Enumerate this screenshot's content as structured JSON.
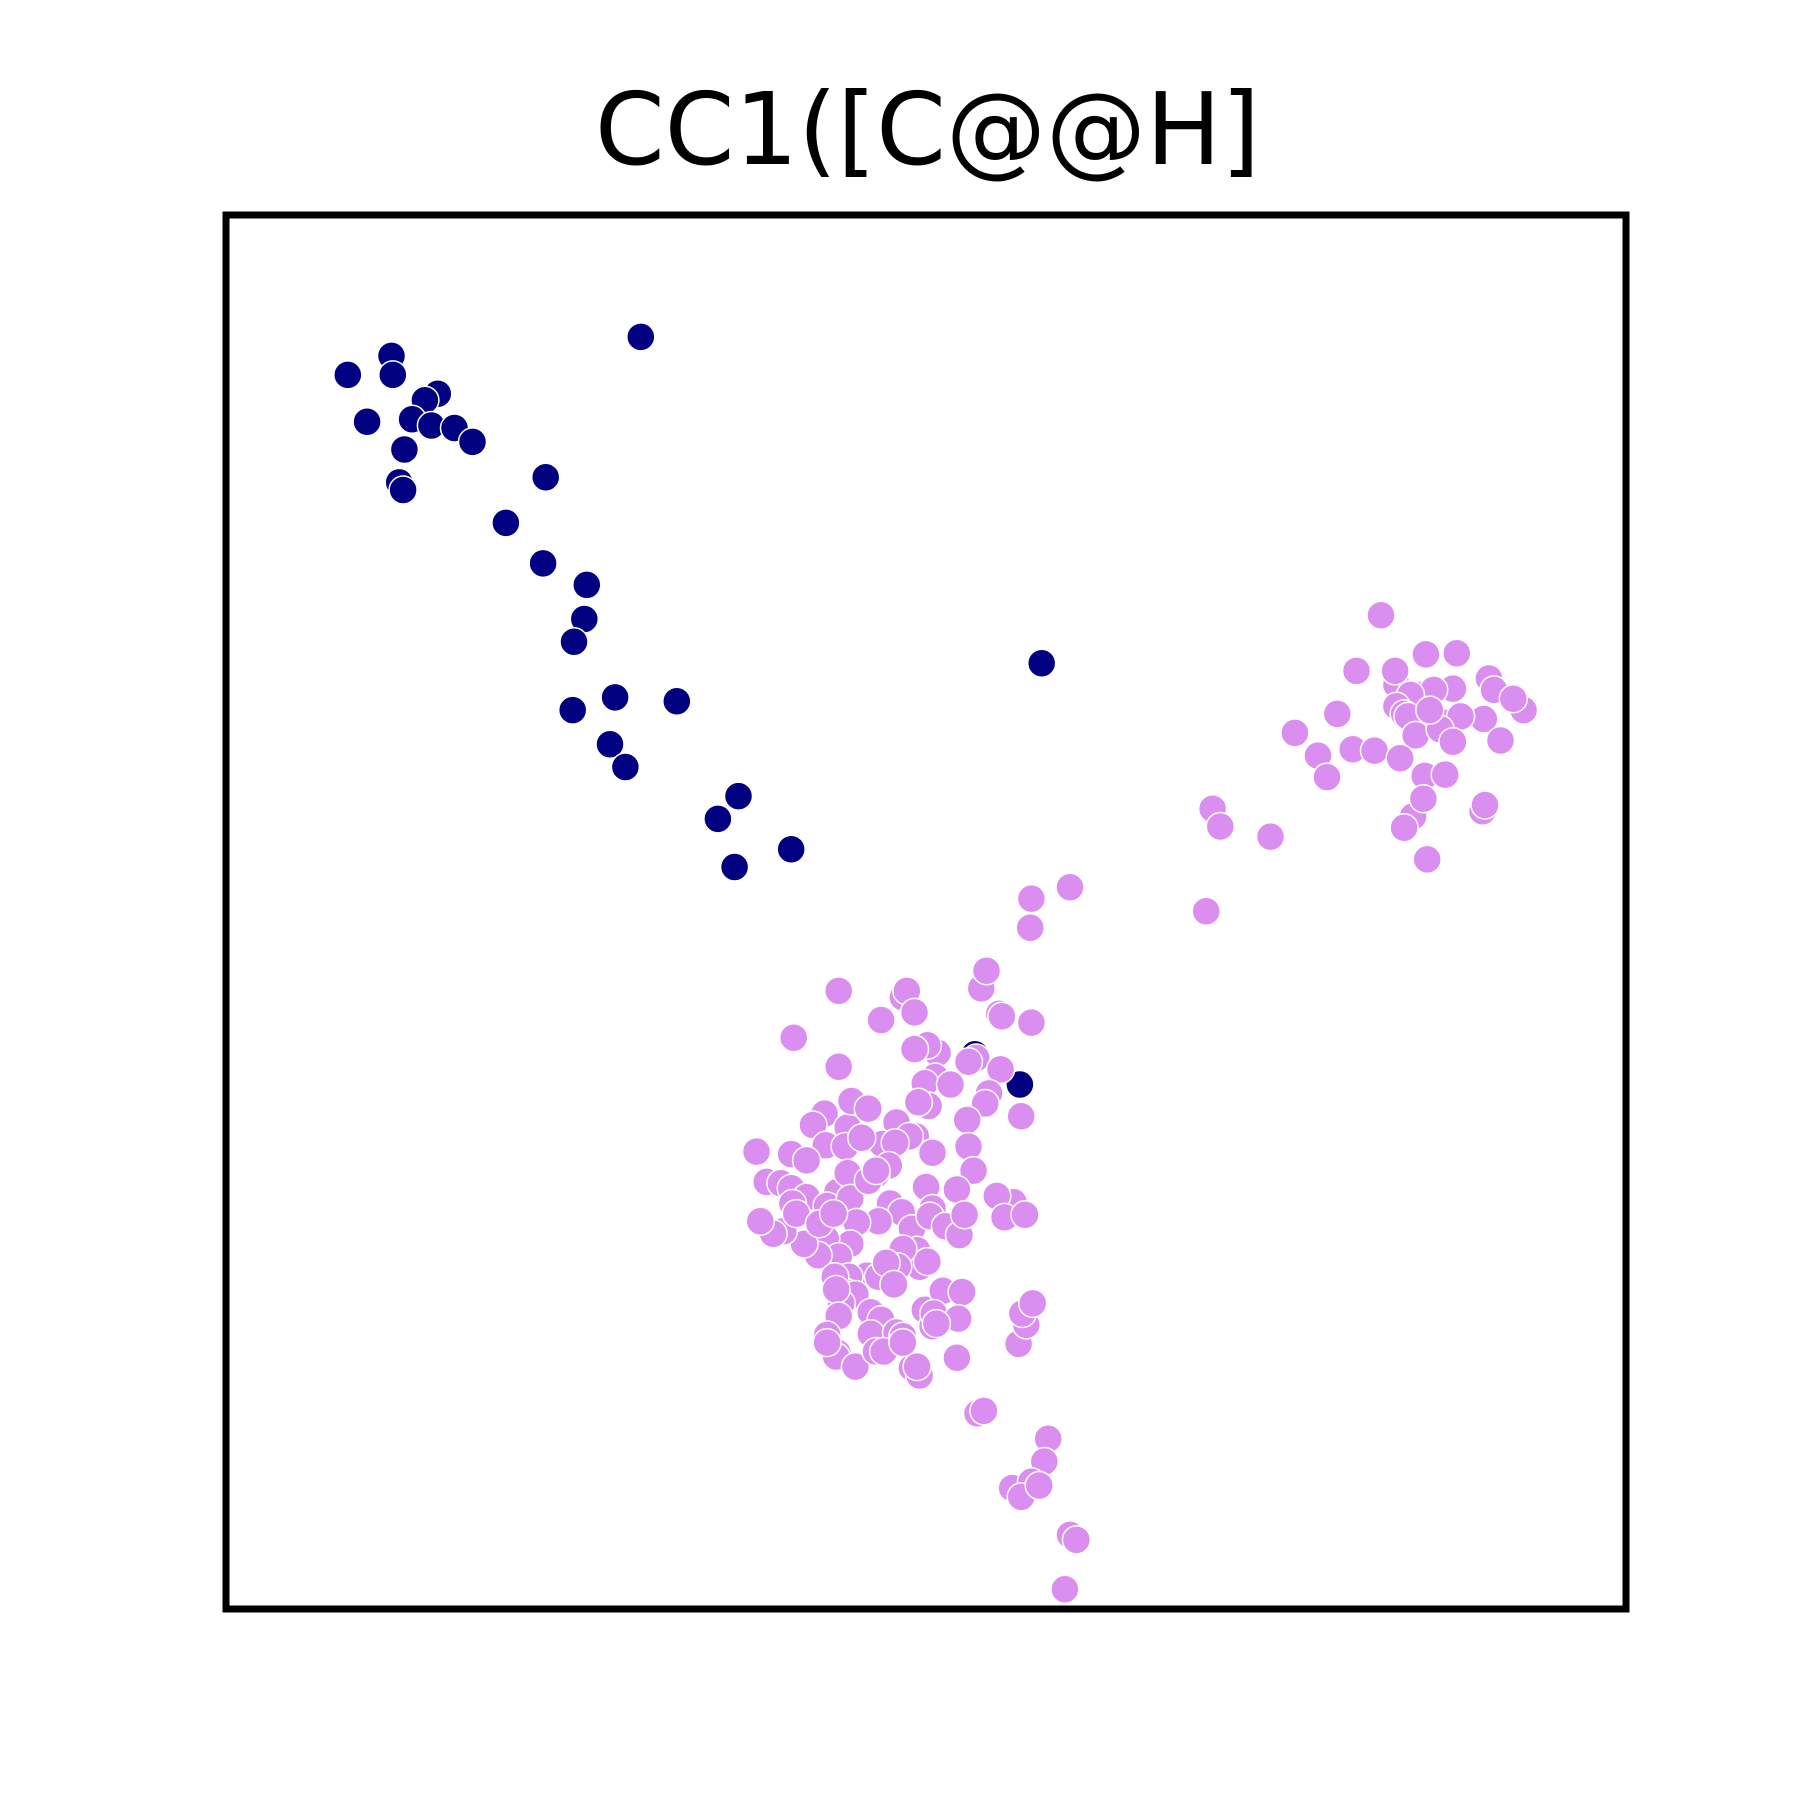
{
  "chart_data": {
    "type": "scatter",
    "title": "CC1([C@@H]",
    "xlabel": "",
    "ylabel": "",
    "xlim": [
      0,
      1
    ],
    "ylim": [
      0,
      1
    ],
    "grid": false,
    "axes_ticks": false,
    "series": [
      {
        "color": "#000080",
        "points": [
          [
            0.045,
            0.925
          ],
          [
            0.079,
            0.94
          ],
          [
            0.08,
            0.925
          ],
          [
            0.115,
            0.91
          ],
          [
            0.105,
            0.905
          ],
          [
            0.06,
            0.888
          ],
          [
            0.095,
            0.89
          ],
          [
            0.11,
            0.885
          ],
          [
            0.128,
            0.883
          ],
          [
            0.142,
            0.872
          ],
          [
            0.089,
            0.866
          ],
          [
            0.085,
            0.84
          ],
          [
            0.088,
            0.834
          ],
          [
            0.199,
            0.844
          ],
          [
            0.273,
            0.955
          ],
          [
            0.168,
            0.808
          ],
          [
            0.197,
            0.776
          ],
          [
            0.231,
            0.759
          ],
          [
            0.229,
            0.732
          ],
          [
            0.221,
            0.714
          ],
          [
            0.22,
            0.66
          ],
          [
            0.253,
            0.67
          ],
          [
            0.301,
            0.667
          ],
          [
            0.249,
            0.633
          ],
          [
            0.261,
            0.615
          ],
          [
            0.349,
            0.592
          ],
          [
            0.333,
            0.574
          ],
          [
            0.39,
            0.55
          ],
          [
            0.346,
            0.536
          ],
          [
            0.585,
            0.697
          ],
          [
            0.533,
            0.388
          ],
          [
            0.568,
            0.364
          ]
        ]
      },
      {
        "color": "#DA8EF0",
        "points": [
          [
            0.849,
            0.735
          ],
          [
            0.908,
            0.705
          ],
          [
            0.884,
            0.704
          ],
          [
            0.83,
            0.691
          ],
          [
            0.933,
            0.685
          ],
          [
            0.861,
            0.68
          ],
          [
            0.86,
            0.691
          ],
          [
            0.88,
            0.672
          ],
          [
            0.905,
            0.677
          ],
          [
            0.884,
            0.662
          ],
          [
            0.937,
            0.676
          ],
          [
            0.89,
            0.676
          ],
          [
            0.872,
            0.672
          ],
          [
            0.861,
            0.663
          ],
          [
            0.867,
            0.657
          ],
          [
            0.815,
            0.657
          ],
          [
            0.899,
            0.65
          ],
          [
            0.87,
            0.655
          ],
          [
            0.929,
            0.653
          ],
          [
            0.911,
            0.655
          ],
          [
            0.876,
            0.64
          ],
          [
            0.895,
            0.645
          ],
          [
            0.887,
            0.66
          ],
          [
            0.942,
            0.636
          ],
          [
            0.905,
            0.635
          ],
          [
            0.96,
            0.66
          ],
          [
            0.952,
            0.669
          ],
          [
            0.827,
            0.629
          ],
          [
            0.844,
            0.628
          ],
          [
            0.864,
            0.622
          ],
          [
            0.8,
            0.624
          ],
          [
            0.782,
            0.642
          ],
          [
            0.807,
            0.607
          ],
          [
            0.883,
            0.608
          ],
          [
            0.874,
            0.576
          ],
          [
            0.882,
            0.59
          ],
          [
            0.899,
            0.609
          ],
          [
            0.928,
            0.58
          ],
          [
            0.93,
            0.585
          ],
          [
            0.718,
            0.582
          ],
          [
            0.724,
            0.568
          ],
          [
            0.763,
            0.56
          ],
          [
            0.885,
            0.542
          ],
          [
            0.867,
            0.567
          ],
          [
            0.713,
            0.501
          ],
          [
            0.607,
            0.52
          ],
          [
            0.577,
            0.511
          ],
          [
            0.576,
            0.488
          ],
          [
            0.477,
            0.433
          ],
          [
            0.48,
            0.438
          ],
          [
            0.538,
            0.44
          ],
          [
            0.542,
            0.454
          ],
          [
            0.552,
            0.42
          ],
          [
            0.486,
            0.421
          ],
          [
            0.504,
            0.389
          ],
          [
            0.496,
            0.395
          ],
          [
            0.534,
            0.385
          ],
          [
            0.528,
            0.382
          ],
          [
            0.427,
            0.438
          ],
          [
            0.392,
            0.401
          ],
          [
            0.427,
            0.378
          ],
          [
            0.46,
            0.415
          ],
          [
            0.486,
            0.392
          ],
          [
            0.554,
            0.418
          ],
          [
            0.577,
            0.413
          ],
          [
            0.553,
            0.376
          ],
          [
            0.569,
            0.339
          ],
          [
            0.502,
            0.37
          ],
          [
            0.494,
            0.365
          ],
          [
            0.497,
            0.347
          ],
          [
            0.544,
            0.357
          ],
          [
            0.541,
            0.349
          ],
          [
            0.527,
            0.336
          ],
          [
            0.514,
            0.364
          ],
          [
            0.487,
            0.323
          ],
          [
            0.5,
            0.31
          ],
          [
            0.528,
            0.315
          ],
          [
            0.532,
            0.296
          ],
          [
            0.489,
            0.35
          ],
          [
            0.416,
            0.341
          ],
          [
            0.407,
            0.332
          ],
          [
            0.434,
            0.33
          ],
          [
            0.417,
            0.316
          ],
          [
            0.432,
            0.315
          ],
          [
            0.437,
            0.351
          ],
          [
            0.45,
            0.345
          ],
          [
            0.39,
            0.309
          ],
          [
            0.402,
            0.304
          ],
          [
            0.443,
            0.289
          ],
          [
            0.472,
            0.334
          ],
          [
            0.482,
            0.323
          ],
          [
            0.426,
            0.279
          ],
          [
            0.465,
            0.301
          ],
          [
            0.461,
            0.317
          ],
          [
            0.471,
            0.318
          ],
          [
            0.445,
            0.322
          ],
          [
            0.466,
            0.3
          ],
          [
            0.434,
            0.294
          ],
          [
            0.456,
            0.293
          ],
          [
            0.363,
            0.311
          ],
          [
            0.371,
            0.287
          ],
          [
            0.382,
            0.286
          ],
          [
            0.39,
            0.282
          ],
          [
            0.402,
            0.275
          ],
          [
            0.418,
            0.268
          ],
          [
            0.436,
            0.274
          ],
          [
            0.45,
            0.288
          ],
          [
            0.456,
            0.296
          ],
          [
            0.495,
            0.283
          ],
          [
            0.519,
            0.281
          ],
          [
            0.5,
            0.266
          ],
          [
            0.467,
            0.27
          ],
          [
            0.476,
            0.263
          ],
          [
            0.484,
            0.25
          ],
          [
            0.458,
            0.256
          ],
          [
            0.441,
            0.255
          ],
          [
            0.436,
            0.238
          ],
          [
            0.417,
            0.242
          ],
          [
            0.427,
            0.228
          ],
          [
            0.411,
            0.229
          ],
          [
            0.4,
            0.238
          ],
          [
            0.384,
            0.248
          ],
          [
            0.391,
            0.27
          ],
          [
            0.376,
            0.246
          ],
          [
            0.394,
            0.262
          ],
          [
            0.366,
            0.256
          ],
          [
            0.412,
            0.254
          ],
          [
            0.423,
            0.262
          ],
          [
            0.498,
            0.26
          ],
          [
            0.51,
            0.252
          ],
          [
            0.521,
            0.245
          ],
          [
            0.525,
            0.261
          ],
          [
            0.488,
            0.233
          ],
          [
            0.49,
            0.22
          ],
          [
            0.496,
            0.224
          ],
          [
            0.477,
            0.234
          ],
          [
            0.473,
            0.22
          ],
          [
            0.449,
            0.213
          ],
          [
            0.458,
            0.212
          ],
          [
            0.464,
            0.223
          ],
          [
            0.435,
            0.212
          ],
          [
            0.432,
            0.2
          ],
          [
            0.424,
            0.212
          ],
          [
            0.47,
            0.206
          ],
          [
            0.494,
            0.186
          ],
          [
            0.508,
            0.201
          ],
          [
            0.523,
            0.2
          ],
          [
            0.5,
            0.173
          ],
          [
            0.501,
            0.183
          ],
          [
            0.52,
            0.179
          ],
          [
            0.44,
            0.198
          ],
          [
            0.429,
            0.191
          ],
          [
            0.425,
            0.202
          ],
          [
            0.427,
            0.181
          ],
          [
            0.452,
            0.184
          ],
          [
            0.46,
            0.178
          ],
          [
            0.452,
            0.167
          ],
          [
            0.472,
            0.168
          ],
          [
            0.477,
            0.165
          ],
          [
            0.503,
            0.175
          ],
          [
            0.426,
            0.152
          ],
          [
            0.418,
            0.166
          ],
          [
            0.425,
            0.149
          ],
          [
            0.44,
            0.141
          ],
          [
            0.484,
            0.14
          ],
          [
            0.49,
            0.134
          ],
          [
            0.418,
            0.16
          ],
          [
            0.456,
            0.153
          ],
          [
            0.462,
            0.153
          ],
          [
            0.477,
            0.16
          ],
          [
            0.488,
            0.141
          ],
          [
            0.519,
            0.148
          ],
          [
            0.563,
            0.271
          ],
          [
            0.55,
            0.276
          ],
          [
            0.556,
            0.259
          ],
          [
            0.572,
            0.261
          ],
          [
            0.567,
            0.159
          ],
          [
            0.573,
            0.174
          ],
          [
            0.57,
            0.183
          ],
          [
            0.578,
            0.191
          ],
          [
            0.535,
            0.104
          ],
          [
            0.54,
            0.106
          ],
          [
            0.59,
            0.084
          ],
          [
            0.587,
            0.066
          ],
          [
            0.562,
            0.045
          ],
          [
            0.577,
            0.05
          ],
          [
            0.569,
            0.038
          ],
          [
            0.583,
            0.047
          ],
          [
            0.607,
            0.008
          ],
          [
            0.612,
            0.004
          ],
          [
            0.603,
            -0.035
          ]
        ]
      }
    ]
  }
}
